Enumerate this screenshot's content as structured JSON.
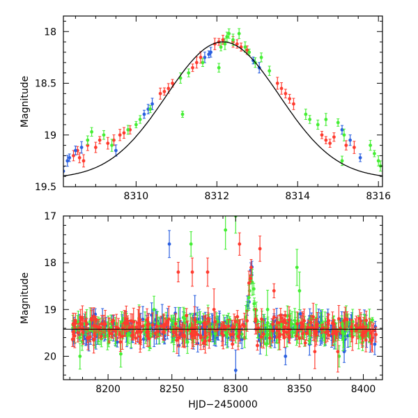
{
  "chart_data": [
    {
      "type": "scatter",
      "panel": "top",
      "xlabel": "",
      "ylabel": "Magnitude",
      "xlim": [
        8308.2,
        8316.1
      ],
      "ylim": [
        19.5,
        17.85
      ],
      "y_inverted": true,
      "grid": false,
      "x_ticks": [
        8310,
        8312,
        8314,
        8316
      ],
      "y_ticks": [
        18,
        18.5,
        19,
        19.5
      ],
      "model_curve": {
        "peak_x": 8312.15,
        "base_mag": 19.42,
        "peak_mag": 18.1,
        "sigma": 1.4,
        "color": "#000000"
      },
      "series": [
        {
          "color": "#ff3a2e",
          "points": [
            [
              8308.45,
              19.2
            ],
            [
              8308.55,
              19.15
            ],
            [
              8308.6,
              19.22
            ],
            [
              8308.7,
              19.25
            ],
            [
              8308.8,
              19.1
            ],
            [
              8309.0,
              19.12
            ],
            [
              8309.1,
              19.05
            ],
            [
              8309.3,
              19.08
            ],
            [
              8309.45,
              19.05
            ],
            [
              8309.6,
              19.0
            ],
            [
              8309.7,
              18.98
            ],
            [
              8309.85,
              18.95
            ],
            [
              8310.6,
              18.6
            ],
            [
              8310.7,
              18.58
            ],
            [
              8310.8,
              18.55
            ],
            [
              8310.9,
              18.5
            ],
            [
              8311.4,
              18.35
            ],
            [
              8311.5,
              18.3
            ],
            [
              8311.6,
              18.25
            ],
            [
              8311.95,
              18.12
            ],
            [
              8312.05,
              18.1
            ],
            [
              8312.15,
              18.08
            ],
            [
              8312.4,
              18.1
            ],
            [
              8312.5,
              18.12
            ],
            [
              8312.6,
              18.15
            ],
            [
              8312.75,
              18.18
            ],
            [
              8313.5,
              18.5
            ],
            [
              8313.6,
              18.55
            ],
            [
              8313.7,
              18.6
            ],
            [
              8313.8,
              18.65
            ],
            [
              8313.9,
              18.7
            ],
            [
              8314.6,
              19.0
            ],
            [
              8314.7,
              19.05
            ],
            [
              8314.8,
              19.08
            ],
            [
              8314.9,
              19.02
            ],
            [
              8315.2,
              19.1
            ],
            [
              8315.4,
              19.12
            ]
          ]
        },
        {
          "color": "#2a5fe0",
          "points": [
            [
              8308.2,
              19.35
            ],
            [
              8308.3,
              19.25
            ],
            [
              8308.35,
              19.22
            ],
            [
              8308.5,
              19.15
            ],
            [
              8308.65,
              19.12
            ],
            [
              8309.5,
              19.15
            ],
            [
              8310.2,
              18.8
            ],
            [
              8310.3,
              18.75
            ],
            [
              8310.4,
              18.7
            ],
            [
              8311.7,
              18.25
            ],
            [
              8311.8,
              18.22
            ],
            [
              8311.85,
              18.2
            ],
            [
              8312.9,
              18.28
            ],
            [
              8313.05,
              18.35
            ],
            [
              8315.1,
              18.95
            ],
            [
              8315.3,
              19.05
            ],
            [
              8315.55,
              19.22
            ]
          ]
        },
        {
          "color": "#44ee33",
          "points": [
            [
              8308.8,
              19.05
            ],
            [
              8308.9,
              18.97
            ],
            [
              8309.2,
              19.0
            ],
            [
              8309.4,
              19.1
            ],
            [
              8309.8,
              18.95
            ],
            [
              8310.0,
              18.9
            ],
            [
              8310.1,
              18.85
            ],
            [
              8310.35,
              18.75
            ],
            [
              8311.1,
              18.45
            ],
            [
              8311.15,
              18.8
            ],
            [
              8311.3,
              18.4
            ],
            [
              8311.65,
              18.3
            ],
            [
              8312.05,
              18.35
            ],
            [
              8312.1,
              18.15
            ],
            [
              8312.2,
              18.12
            ],
            [
              8312.25,
              18.05
            ],
            [
              8312.3,
              18.02
            ],
            [
              8312.4,
              18.08
            ],
            [
              8312.55,
              18.02
            ],
            [
              8312.7,
              18.15
            ],
            [
              8312.8,
              18.2
            ],
            [
              8312.95,
              18.3
            ],
            [
              8313.1,
              18.25
            ],
            [
              8313.3,
              18.38
            ],
            [
              8314.2,
              18.8
            ],
            [
              8314.3,
              18.85
            ],
            [
              8314.5,
              18.9
            ],
            [
              8314.7,
              18.85
            ],
            [
              8315.0,
              18.88
            ],
            [
              8315.1,
              19.25
            ],
            [
              8315.15,
              19.0
            ],
            [
              8315.8,
              19.1
            ],
            [
              8315.9,
              19.18
            ],
            [
              8316.0,
              19.25
            ],
            [
              8316.05,
              19.3
            ]
          ]
        }
      ]
    },
    {
      "type": "scatter",
      "panel": "bottom",
      "xlabel": "HJD−2450000",
      "ylabel": "Magnitude",
      "xlim": [
        8165,
        8415
      ],
      "ylim": [
        20.5,
        17
      ],
      "y_inverted": true,
      "grid": false,
      "x_ticks": [
        8200,
        8250,
        8300,
        8350,
        8400
      ],
      "y_ticks": [
        17,
        18,
        19,
        20
      ],
      "baseline_mag": 19.42,
      "event": {
        "peak_x": 8312.15,
        "peak_mag": 18.1,
        "sigma": 1.4
      },
      "dense_x_range": [
        8172,
        8410
      ],
      "series": [
        {
          "color": "#2a5fe0",
          "outliers": [
            [
              8248,
              17.6
            ],
            [
              8235,
              19.3
            ],
            [
              8268,
              19.1
            ],
            [
              8292,
              19.55
            ],
            [
              8339,
              20.0
            ],
            [
              8385,
              19.9
            ],
            [
              8300,
              20.3
            ]
          ]
        },
        {
          "color": "#44ee33",
          "outliers": [
            [
              8265,
              17.6
            ],
            [
              8292,
              17.3
            ],
            [
              8300,
              17.0
            ],
            [
              8325,
              19.0
            ],
            [
              8348,
              18.1
            ],
            [
              8350,
              18.6
            ],
            [
              8370,
              19.4
            ],
            [
              8381,
              20.0
            ],
            [
              8178,
              20.0
            ],
            [
              8210,
              19.95
            ],
            [
              8236,
              19.0
            ],
            [
              8260,
              19.2
            ]
          ]
        },
        {
          "color": "#ff3a2e",
          "outliers": [
            [
              8255,
              18.2
            ],
            [
              8266,
              18.2
            ],
            [
              8278,
              18.2
            ],
            [
              8303,
              17.6
            ],
            [
              8319,
              17.7
            ],
            [
              8330,
              18.6
            ],
            [
              8283,
              19.0
            ],
            [
              8380,
              19.9
            ],
            [
              8362,
              19.9
            ]
          ]
        }
      ]
    }
  ]
}
